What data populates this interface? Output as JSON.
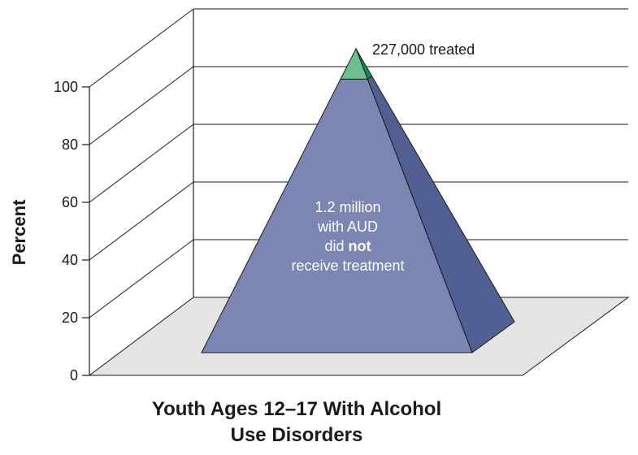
{
  "chart_data": {
    "type": "pyramid",
    "title": "",
    "xlabel_lines": [
      "Youth Ages 12–17 With Alcohol",
      "Use Disorders"
    ],
    "ylabel": "Percent",
    "ylim": [
      0,
      100
    ],
    "yticks": [
      0,
      20,
      40,
      60,
      80,
      100
    ],
    "segments": [
      {
        "label": "did not receive treatment",
        "count": "1.2 million",
        "percent_range": [
          0,
          90
        ],
        "color": "#7b86b2",
        "side_color": "#525f92"
      },
      {
        "label": "treated",
        "count": "227,000",
        "percent_range": [
          90,
          100
        ],
        "color": "#6dbf8f",
        "side_color": "#0f8e5a"
      }
    ],
    "annotations": {
      "treated": "227,000 treated",
      "untreated_lines": [
        [
          {
            "text": "1.2 million",
            "bold": false
          }
        ],
        [
          {
            "text": "with AUD",
            "bold": false
          }
        ],
        [
          {
            "text": "did ",
            "bold": false
          },
          {
            "text": "not",
            "bold": true
          }
        ],
        [
          {
            "text": "receive treatment",
            "bold": false
          }
        ]
      ]
    },
    "colors": {
      "floor": "#e4e4e4",
      "gridline": "#1a1a1a"
    }
  }
}
